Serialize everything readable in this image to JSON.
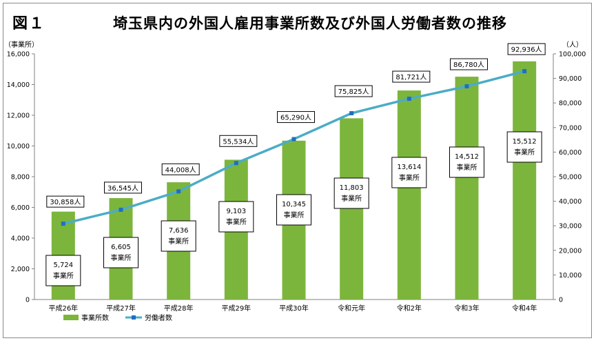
{
  "figure_label": "図１",
  "chart_data": {
    "type": "bar",
    "title": "埼玉県内の外国人雇用事業所数及び外国人労働者数の推移",
    "categories": [
      "平成26年",
      "平成27年",
      "平成28年",
      "平成29年",
      "平成30年",
      "令和元年",
      "令和2年",
      "令和3年",
      "令和4年"
    ],
    "ylabel_left": "（事業所）",
    "ylabel_right": "（人）",
    "ylim_left": [
      0,
      16000
    ],
    "ylim_right": [
      0,
      100000
    ],
    "yticks_left": [
      "0",
      "2,000",
      "4,000",
      "6,000",
      "8,000",
      "10,000",
      "12,000",
      "14,000",
      "16,000"
    ],
    "yticks_right": [
      "0",
      "10,000",
      "20,000",
      "30,000",
      "40,000",
      "50,000",
      "60,000",
      "70,000",
      "80,000",
      "90,000",
      "100,000"
    ],
    "grid": false,
    "legend_position": "bottom-left",
    "series": [
      {
        "name": "事業所数",
        "type": "bar",
        "axis": "left",
        "color": "#7cb53c",
        "values": [
          5724,
          6605,
          7636,
          9103,
          10345,
          11803,
          13614,
          14512,
          15512
        ],
        "labels": [
          "5,724",
          "6,605",
          "7,636",
          "9,103",
          "10,345",
          "11,803",
          "13,614",
          "14,512",
          "15,512"
        ],
        "label_unit": "事業所"
      },
      {
        "name": "労働者数",
        "type": "line",
        "axis": "right",
        "color": "#4bacc6",
        "marker_color": "#1f6fbf",
        "values": [
          30858,
          36545,
          44008,
          55534,
          65290,
          75825,
          81721,
          86780,
          92936
        ],
        "labels": [
          "30,858人",
          "36,545人",
          "44,008人",
          "55,534人",
          "65,290人",
          "75,825人",
          "81,721人",
          "86,780人",
          "92,936人"
        ]
      }
    ]
  }
}
